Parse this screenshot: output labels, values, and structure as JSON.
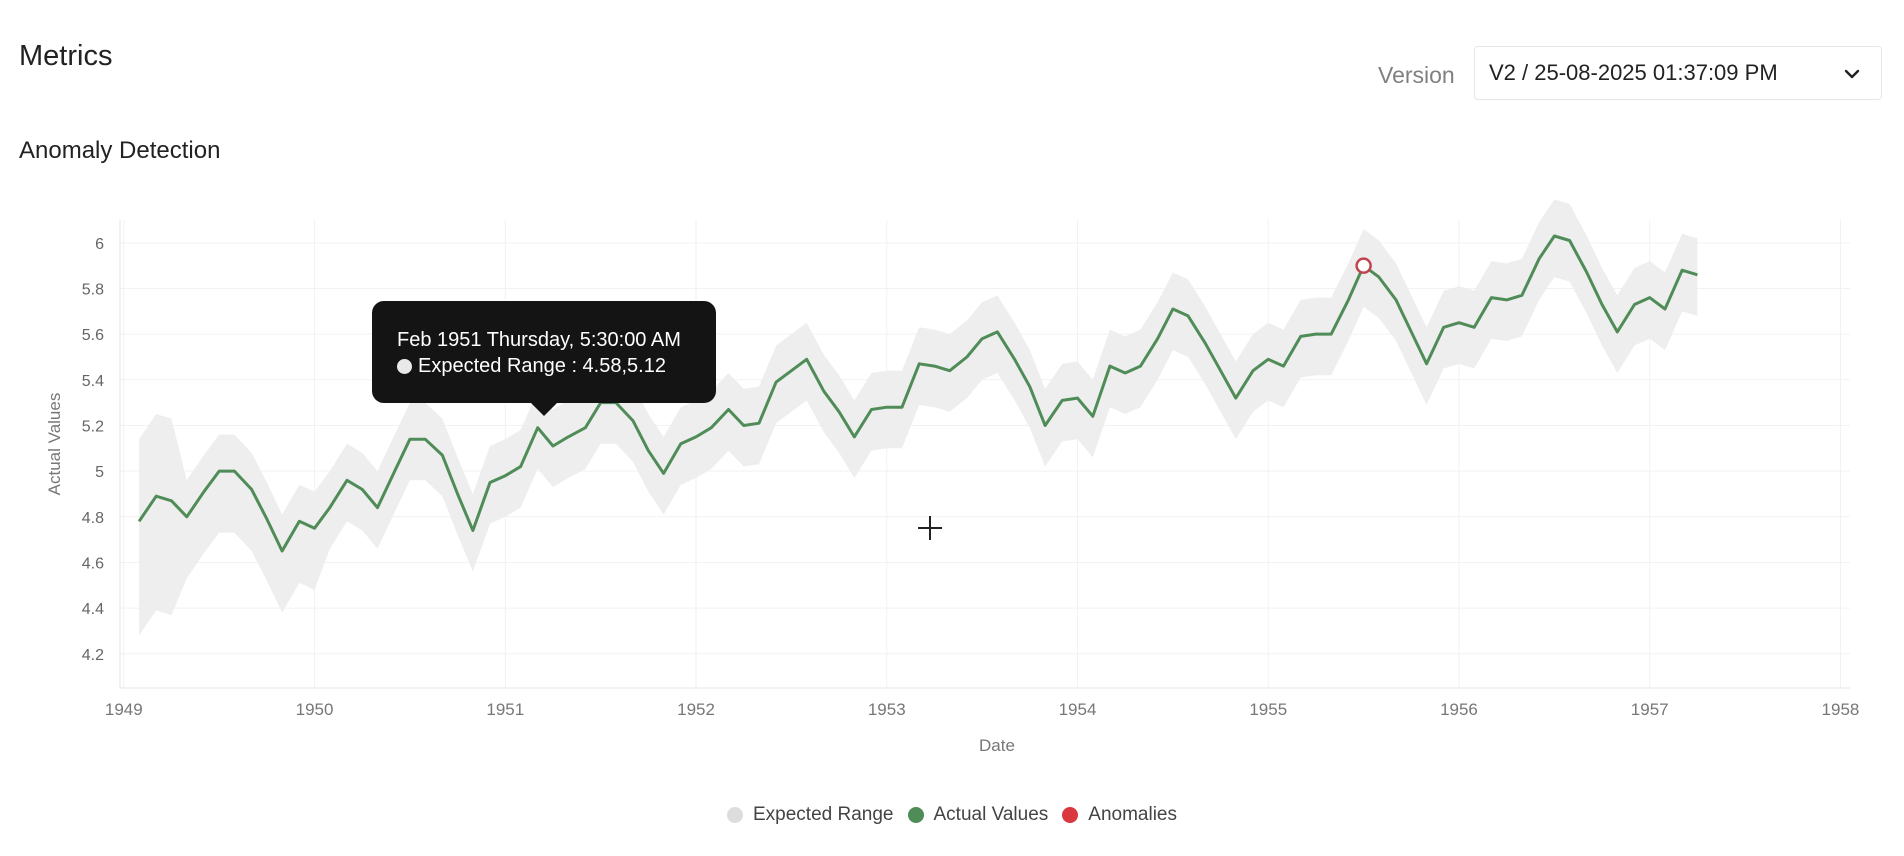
{
  "header": {
    "title": "Metrics",
    "version_label": "Version",
    "version_value": "V2 / 25-08-2025 01:37:09 PM"
  },
  "section": {
    "title": "Anomaly Detection"
  },
  "tooltip": {
    "title": "Feb 1951 Thursday, 5:30:00 AM",
    "row": "Expected Range : 4.58,5.12"
  },
  "colors": {
    "actual": "#4f8c57",
    "band": "#ececec",
    "anomaly": "#c0444e",
    "legend_expected": "#dddddd",
    "legend_actual": "#4f8c57",
    "legend_anomaly": "#d9383f"
  },
  "icons": {
    "dropdown": "chevron-down-icon",
    "cursor": "crosshair-cursor-icon"
  },
  "chart_data": {
    "type": "line",
    "xlabel": "Date",
    "ylabel": "Actual Values",
    "xlim": [
      1948.98,
      1958.05
    ],
    "ylim": [
      4.05,
      6.1
    ],
    "x_ticks": [
      "1949",
      "1950",
      "1951",
      "1952",
      "1953",
      "1954",
      "1955",
      "1956",
      "1957",
      "1958"
    ],
    "y_ticks": [
      "4.2",
      "4.4",
      "4.6",
      "4.8",
      "5",
      "5.2",
      "5.4",
      "5.6",
      "5.8",
      "6"
    ],
    "grid": true,
    "legend_position": "bottom-center",
    "legend": [
      "Expected Range",
      "Actual Values",
      "Anomalies"
    ],
    "x": [
      1949.08,
      1949.17,
      1949.25,
      1949.33,
      1949.42,
      1949.5,
      1949.58,
      1949.67,
      1949.75,
      1949.83,
      1949.92,
      1950.0,
      1950.08,
      1950.17,
      1950.25,
      1950.33,
      1950.42,
      1950.5,
      1950.58,
      1950.67,
      1950.75,
      1950.83,
      1950.92,
      1951.0,
      1951.08,
      1951.17,
      1951.25,
      1951.33,
      1951.42,
      1951.5,
      1951.58,
      1951.67,
      1951.75,
      1951.83,
      1951.92,
      1952.0,
      1952.08,
      1952.17,
      1952.25,
      1952.33,
      1952.42,
      1952.5,
      1952.58,
      1952.67,
      1952.75,
      1952.83,
      1952.92,
      1953.0,
      1953.08,
      1953.17,
      1953.25,
      1953.33,
      1953.42,
      1953.5,
      1953.58,
      1953.67,
      1953.75,
      1953.83,
      1953.92,
      1954.0,
      1954.08,
      1954.17,
      1954.25,
      1954.33,
      1954.42,
      1954.5,
      1954.58,
      1954.67,
      1954.75,
      1954.83,
      1954.92,
      1955.0,
      1955.08,
      1955.17,
      1955.25,
      1955.33,
      1955.42,
      1955.5,
      1955.58,
      1955.67,
      1955.75,
      1955.83,
      1955.92,
      1956.0,
      1956.08,
      1956.17,
      1956.25,
      1956.33,
      1956.42,
      1956.5,
      1956.58,
      1956.67,
      1956.75,
      1956.83,
      1956.92,
      1957.0,
      1957.08,
      1957.17,
      1957.25
    ],
    "series": [
      {
        "name": "Actual Values",
        "values": [
          4.78,
          4.89,
          4.87,
          4.8,
          4.91,
          5.0,
          5.0,
          4.92,
          4.79,
          4.65,
          4.78,
          4.75,
          4.84,
          4.96,
          4.92,
          4.84,
          5.0,
          5.14,
          5.14,
          5.07,
          4.9,
          4.74,
          4.95,
          4.98,
          5.02,
          5.19,
          5.11,
          5.15,
          5.19,
          5.3,
          5.3,
          5.22,
          5.09,
          4.99,
          5.12,
          5.15,
          5.19,
          5.27,
          5.2,
          5.21,
          5.39,
          5.44,
          5.49,
          5.35,
          5.26,
          5.15,
          5.27,
          5.28,
          5.28,
          5.47,
          5.46,
          5.44,
          5.5,
          5.58,
          5.61,
          5.49,
          5.37,
          5.2,
          5.31,
          5.32,
          5.24,
          5.46,
          5.43,
          5.46,
          5.58,
          5.71,
          5.68,
          5.56,
          5.44,
          5.32,
          5.44,
          5.49,
          5.46,
          5.59,
          5.6,
          5.6,
          5.75,
          5.9,
          5.85,
          5.75,
          5.61,
          5.47,
          5.63,
          5.65,
          5.63,
          5.76,
          5.75,
          5.77,
          5.93,
          6.03,
          6.01,
          5.87,
          5.73,
          5.61,
          5.73,
          5.76,
          5.71,
          5.88,
          5.86
        ]
      }
    ],
    "anomalies": [
      {
        "x": 1955.5,
        "y": 5.9
      }
    ]
  }
}
